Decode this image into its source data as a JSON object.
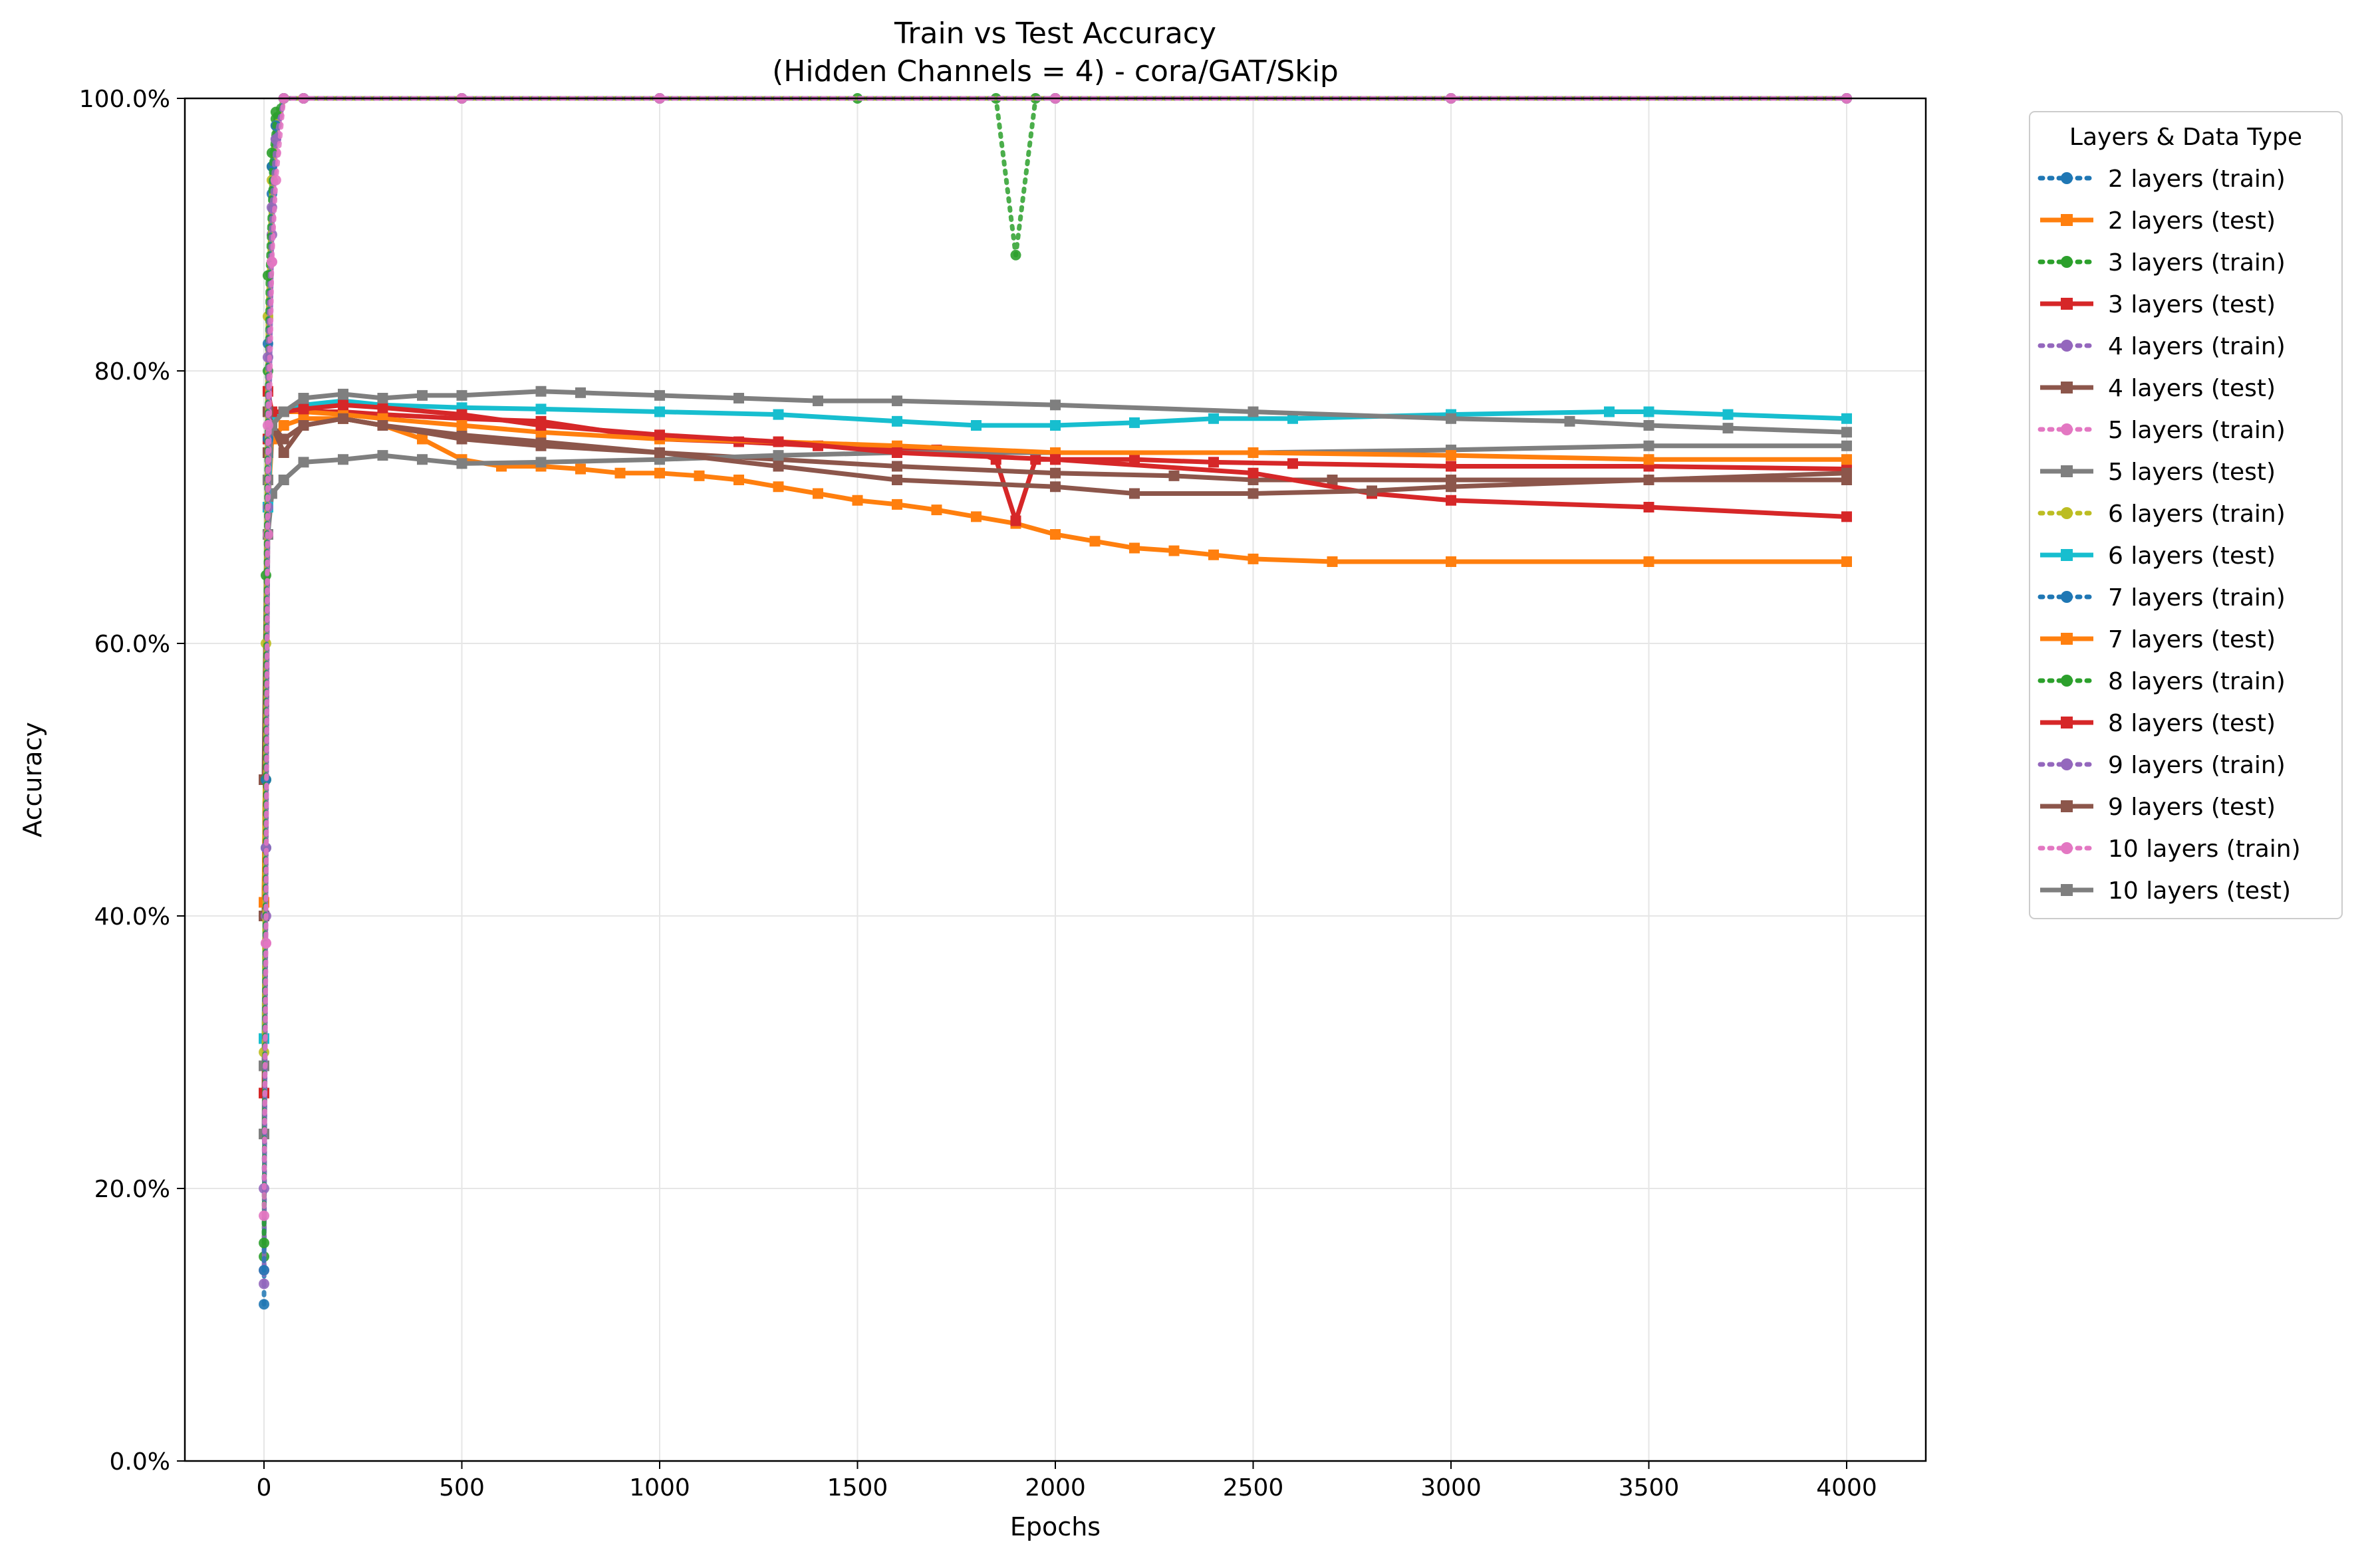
{
  "chart_data": {
    "type": "line",
    "title": "Train vs Test Accuracy",
    "subtitle": "(Hidden Channels = 4) - cora/GAT/Skip",
    "xlabel": "Epochs",
    "ylabel": "Accuracy",
    "xlim": [
      -200,
      4200
    ],
    "ylim": [
      0,
      100
    ],
    "x_ticks": [
      0,
      500,
      1000,
      1500,
      2000,
      2500,
      3000,
      3500,
      4000
    ],
    "y_ticks": [
      0,
      20,
      40,
      60,
      80,
      100
    ],
    "y_tick_labels": [
      "0.0%",
      "20.0%",
      "40.0%",
      "60.0%",
      "80.0%",
      "100.0%"
    ],
    "grid": true,
    "legend": {
      "title": "Layers & Data Type",
      "placement": "outside-right"
    },
    "series": [
      {
        "name": "2 layers (train)",
        "color": "#1f77b4",
        "style": "dotted",
        "marker": "circle",
        "x": [
          0,
          5,
          10,
          20,
          30,
          50,
          100,
          500,
          1000,
          2000,
          3000,
          4000
        ],
        "y": [
          11.5,
          45,
          75,
          93,
          98,
          100,
          100,
          100,
          100,
          100,
          100,
          100
        ]
      },
      {
        "name": "2 layers (test)",
        "color": "#ff7f0e",
        "style": "solid",
        "marker": "square",
        "x": [
          0,
          10,
          20,
          50,
          100,
          200,
          300,
          400,
          500,
          600,
          700,
          800,
          900,
          1000,
          1100,
          1200,
          1300,
          1400,
          1500,
          1600,
          1700,
          1800,
          1900,
          2000,
          2100,
          2200,
          2300,
          2400,
          2500,
          2700,
          3000,
          3500,
          4000
        ],
        "y": [
          40,
          70,
          75,
          76,
          76.5,
          76.5,
          76,
          75,
          73.5,
          73,
          73,
          72.8,
          72.5,
          72.5,
          72.3,
          72,
          71.5,
          71,
          70.5,
          70.2,
          69.8,
          69.3,
          68.8,
          68,
          67.5,
          67,
          66.8,
          66.5,
          66.2,
          66,
          66,
          66,
          66
        ]
      },
      {
        "name": "3 layers (train)",
        "color": "#2ca02c",
        "style": "dotted",
        "marker": "circle",
        "x": [
          0,
          5,
          10,
          20,
          30,
          50,
          100,
          500,
          1000,
          1500,
          1850,
          1900,
          1950,
          2000,
          3000,
          4000
        ],
        "y": [
          15,
          50,
          80,
          95,
          98.5,
          100,
          100,
          100,
          100,
          100,
          100,
          88.5,
          100,
          100,
          100,
          100
        ]
      },
      {
        "name": "3 layers (test)",
        "color": "#d62728",
        "style": "solid",
        "marker": "square",
        "x": [
          0,
          10,
          20,
          50,
          100,
          200,
          300,
          500,
          700,
          1000,
          1200,
          1400,
          1600,
          1700,
          1800,
          1850,
          1900,
          1950,
          2000,
          2200,
          2400,
          2600,
          3000,
          3500,
          4000
        ],
        "y": [
          40,
          75,
          77,
          77,
          77,
          77,
          76.8,
          76.5,
          76.3,
          75,
          74.8,
          74.5,
          74.3,
          74.2,
          74,
          73.5,
          69,
          73.5,
          73.5,
          73.5,
          73.3,
          73.2,
          73,
          73,
          72.8
        ]
      },
      {
        "name": "4 layers (train)",
        "color": "#9467bd",
        "style": "dotted",
        "marker": "circle",
        "x": [
          0,
          5,
          10,
          20,
          30,
          50,
          100,
          500,
          1000,
          2000,
          3000,
          4000
        ],
        "y": [
          13,
          40,
          70,
          90,
          97,
          100,
          100,
          100,
          100,
          100,
          100,
          100
        ]
      },
      {
        "name": "4 layers (test)",
        "color": "#8c564b",
        "style": "solid",
        "marker": "square",
        "x": [
          0,
          10,
          20,
          50,
          100,
          200,
          300,
          500,
          700,
          1000,
          1300,
          1600,
          2000,
          2300,
          2500,
          2700,
          3000,
          3500,
          4000
        ],
        "y": [
          40,
          74,
          76,
          75,
          76,
          76.5,
          76,
          75.3,
          74.8,
          74,
          73.5,
          73,
          72.5,
          72.3,
          72,
          72,
          72,
          72,
          72
        ]
      },
      {
        "name": "5 layers (train)",
        "color": "#e377c2",
        "style": "dotted",
        "marker": "circle",
        "x": [
          0,
          5,
          10,
          20,
          30,
          50,
          100,
          500,
          1000,
          2000,
          3000,
          4000
        ],
        "y": [
          14,
          38,
          68,
          88,
          96,
          100,
          100,
          100,
          100,
          100,
          100,
          100
        ]
      },
      {
        "name": "5 layers (test)",
        "color": "#7f7f7f",
        "style": "solid",
        "marker": "square",
        "x": [
          0,
          10,
          20,
          50,
          100,
          200,
          300,
          400,
          500,
          700,
          1000,
          1300,
          1600,
          2000,
          2500,
          3000,
          3500,
          4000
        ],
        "y": [
          24,
          68,
          71,
          72,
          73.3,
          73.5,
          73.8,
          73.5,
          73.2,
          73.3,
          73.5,
          73.8,
          74,
          74,
          74,
          74.2,
          74.5,
          74.5
        ]
      },
      {
        "name": "6 layers (train)",
        "color": "#bcbd22",
        "style": "dotted",
        "marker": "circle",
        "x": [
          0,
          5,
          10,
          20,
          30,
          50,
          100,
          500,
          1000,
          2000,
          3000,
          4000
        ],
        "y": [
          30,
          60,
          84,
          94,
          98,
          100,
          100,
          100,
          100,
          100,
          100,
          100
        ]
      },
      {
        "name": "6 layers (test)",
        "color": "#17becf",
        "style": "solid",
        "marker": "square",
        "x": [
          0,
          10,
          20,
          50,
          100,
          200,
          300,
          500,
          700,
          1000,
          1300,
          1600,
          1800,
          2000,
          2200,
          2400,
          2600,
          3000,
          3400,
          3500,
          3700,
          4000
        ],
        "y": [
          31,
          70,
          76.5,
          77,
          77.5,
          77.8,
          77.5,
          77.3,
          77.2,
          77,
          76.8,
          76.3,
          76,
          76,
          76.2,
          76.5,
          76.5,
          76.8,
          77,
          77,
          76.8,
          76.5
        ]
      },
      {
        "name": "7 layers (train)",
        "color": "#1f77b4",
        "style": "dotted",
        "marker": "circle",
        "x": [
          0,
          5,
          10,
          20,
          30,
          50,
          100,
          500,
          1000,
          2000,
          3000,
          4000
        ],
        "y": [
          14,
          50,
          82,
          95,
          98,
          100,
          100,
          100,
          100,
          100,
          100,
          100
        ]
      },
      {
        "name": "7 layers (test)",
        "color": "#ff7f0e",
        "style": "solid",
        "marker": "square",
        "x": [
          0,
          10,
          20,
          50,
          100,
          200,
          300,
          500,
          700,
          1000,
          1300,
          1600,
          2000,
          2500,
          3000,
          3500,
          4000
        ],
        "y": [
          41,
          72,
          76,
          77,
          77,
          76.8,
          76.5,
          76,
          75.5,
          75,
          74.8,
          74.5,
          74,
          74,
          73.8,
          73.5,
          73.5
        ]
      },
      {
        "name": "8 layers (train)",
        "color": "#2ca02c",
        "style": "dotted",
        "marker": "circle",
        "x": [
          0,
          5,
          10,
          20,
          30,
          50,
          100,
          500,
          1000,
          2000,
          3000,
          4000
        ],
        "y": [
          16,
          65,
          87,
          96,
          99,
          100,
          100,
          100,
          100,
          100,
          100,
          100
        ]
      },
      {
        "name": "8 layers (test)",
        "color": "#d62728",
        "style": "solid",
        "marker": "square",
        "x": [
          0,
          10,
          20,
          50,
          100,
          200,
          300,
          500,
          700,
          1000,
          1300,
          1600,
          2000,
          2500,
          2800,
          3000,
          3500,
          4000
        ],
        "y": [
          27,
          78.5,
          77,
          77,
          77.2,
          77.5,
          77.3,
          76.8,
          76,
          75.3,
          74.8,
          74,
          73.5,
          72.5,
          71,
          70.5,
          70,
          69.3
        ]
      },
      {
        "name": "9 layers (train)",
        "color": "#9467bd",
        "style": "dotted",
        "marker": "circle",
        "x": [
          0,
          5,
          10,
          20,
          30,
          50,
          100,
          500,
          1000,
          2000,
          3000,
          4000
        ],
        "y": [
          20,
          45,
          81,
          92,
          97,
          100,
          100,
          100,
          100,
          100,
          100,
          100
        ]
      },
      {
        "name": "9 layers (test)",
        "color": "#8c564b",
        "style": "solid",
        "marker": "square",
        "x": [
          0,
          10,
          20,
          50,
          100,
          200,
          300,
          500,
          700,
          1000,
          1300,
          1600,
          2000,
          2200,
          2500,
          2800,
          3000,
          3500,
          4000
        ],
        "y": [
          50,
          77,
          76,
          74,
          76,
          76.5,
          76,
          75,
          74.5,
          74,
          73,
          72,
          71.5,
          71,
          71,
          71.2,
          71.5,
          72,
          72.5
        ]
      },
      {
        "name": "10 layers (train)",
        "color": "#e377c2",
        "style": "dotted",
        "marker": "circle",
        "x": [
          0,
          5,
          10,
          20,
          30,
          50,
          100,
          500,
          1000,
          2000,
          3000,
          4000
        ],
        "y": [
          18,
          38,
          76,
          88,
          94,
          100,
          100,
          100,
          100,
          100,
          100,
          100
        ]
      },
      {
        "name": "10 layers (test)",
        "color": "#7f7f7f",
        "style": "solid",
        "marker": "square",
        "x": [
          0,
          10,
          20,
          50,
          100,
          200,
          300,
          400,
          500,
          700,
          800,
          1000,
          1200,
          1400,
          1600,
          2000,
          2500,
          3000,
          3300,
          3500,
          3700,
          4000
        ],
        "y": [
          29,
          72,
          76,
          77,
          78,
          78.3,
          78,
          78.2,
          78.2,
          78.5,
          78.4,
          78.2,
          78,
          77.8,
          77.8,
          77.5,
          77,
          76.5,
          76.3,
          76,
          75.8,
          75.5
        ]
      }
    ]
  }
}
